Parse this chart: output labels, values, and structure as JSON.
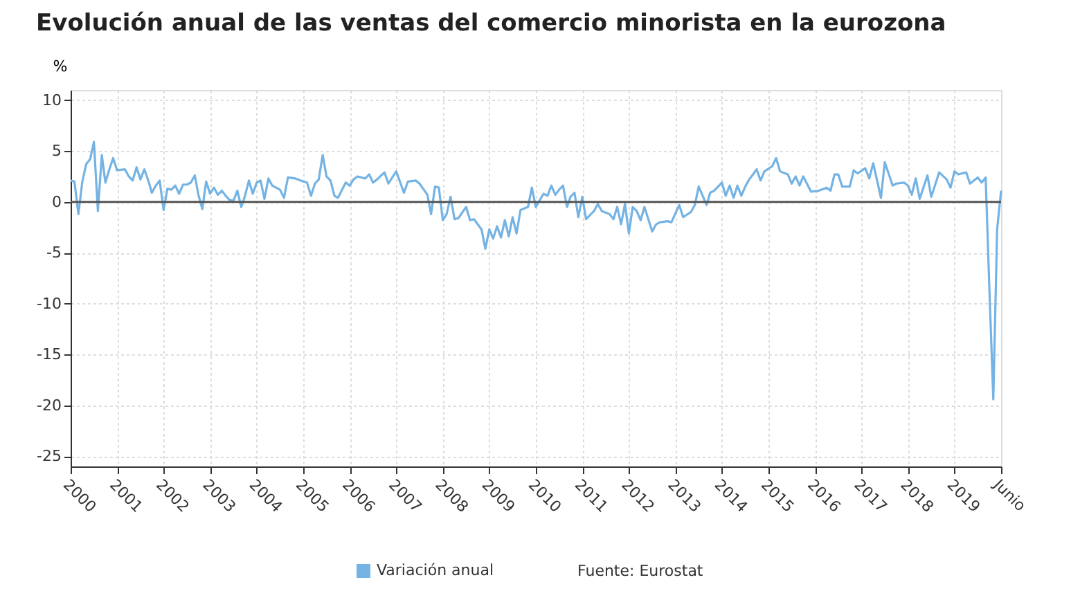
{
  "chart_data": {
    "type": "line",
    "title": "Evolución anual de las ventas del comercio minorista en la eurozona",
    "ylabel": "%",
    "x": [
      "2000-06",
      "2000-07",
      "2000-08",
      "2000-09",
      "2000-10",
      "2000-11",
      "2000-12",
      "2001-01",
      "2001-02",
      "2001-03",
      "2001-04",
      "2001-05",
      "2001-06",
      "2001-08",
      "2001-09",
      "2001-10",
      "2001-11",
      "2001-12",
      "2002-01",
      "2002-02",
      "2002-03",
      "2002-04",
      "2002-05",
      "2002-06",
      "2002-07",
      "2002-08",
      "2002-09",
      "2002-10",
      "2002-11",
      "2002-12",
      "2003-01",
      "2003-02",
      "2003-03",
      "2003-04",
      "2003-05",
      "2003-06",
      "2003-07",
      "2003-08",
      "2003-09",
      "2003-10",
      "2003-11",
      "2003-12",
      "2004-01",
      "2004-02",
      "2004-03",
      "2004-04",
      "2004-05",
      "2004-06",
      "2004-07",
      "2004-08",
      "2004-09",
      "2004-10",
      "2004-12",
      "2005-01",
      "2005-02",
      "2005-04",
      "2005-06",
      "2005-07",
      "2005-08",
      "2005-09",
      "2005-10",
      "2005-11",
      "2005-12",
      "2006-01",
      "2006-02",
      "2006-03",
      "2006-05",
      "2006-06",
      "2006-07",
      "2006-08",
      "2006-10",
      "2006-11",
      "2006-12",
      "2007-01",
      "2007-03",
      "2007-04",
      "2007-06",
      "2007-08",
      "2007-09",
      "2007-11",
      "2007-12",
      "2008-02",
      "2008-03",
      "2008-04",
      "2008-05",
      "2008-06",
      "2008-07",
      "2008-08",
      "2008-09",
      "2008-10",
      "2008-12",
      "2009-01",
      "2009-02",
      "2009-04",
      "2009-05",
      "2009-06",
      "2009-07",
      "2009-08",
      "2009-09",
      "2009-10",
      "2009-11",
      "2009-12",
      "2010-01",
      "2010-02",
      "2010-04",
      "2010-05",
      "2010-06",
      "2010-08",
      "2010-09",
      "2010-10",
      "2010-11",
      "2010-12",
      "2011-01",
      "2011-02",
      "2011-03",
      "2011-04",
      "2011-05",
      "2011-06",
      "2011-07",
      "2011-09",
      "2011-10",
      "2011-11",
      "2012-01",
      "2012-02",
      "2012-03",
      "2012-04",
      "2012-05",
      "2012-06",
      "2012-07",
      "2012-08",
      "2012-09",
      "2012-10",
      "2012-12",
      "2013-01",
      "2013-02",
      "2013-04",
      "2013-05",
      "2013-07",
      "2013-08",
      "2013-10",
      "2013-11",
      "2013-12",
      "2014-02",
      "2014-03",
      "2014-04",
      "2014-06",
      "2014-07",
      "2014-08",
      "2014-09",
      "2014-10",
      "2014-11",
      "2014-12",
      "2015-01",
      "2015-02",
      "2015-03",
      "2015-04",
      "2015-05",
      "2015-07",
      "2015-08",
      "2015-09",
      "2015-11",
      "2015-12",
      "2016-01",
      "2016-02",
      "2016-03",
      "2016-05",
      "2016-07",
      "2016-09",
      "2016-10",
      "2016-11",
      "2016-12",
      "2017-01",
      "2017-03",
      "2017-04",
      "2017-05",
      "2017-07",
      "2017-08",
      "2017-09",
      "2017-11",
      "2017-12",
      "2018-02",
      "2018-03",
      "2018-05",
      "2018-06",
      "2018-07",
      "2018-08",
      "2018-09",
      "2018-11",
      "2018-12",
      "2019-02",
      "2019-04",
      "2019-05",
      "2019-06",
      "2019-07",
      "2019-09",
      "2019-10",
      "2019-12",
      "2020-01",
      "2020-02",
      "2020-03",
      "2020-04",
      "2020-05",
      "2020-06"
    ],
    "series": [
      {
        "name": "Variación anual",
        "color": "#74b3e3",
        "values": [
          2.1,
          2.0,
          -1.2,
          2.0,
          3.7,
          4.2,
          5.9,
          -0.9,
          4.6,
          1.9,
          3.2,
          4.3,
          3.1,
          3.2,
          2.5,
          2.1,
          3.4,
          2.2,
          3.2,
          2.1,
          0.9,
          1.6,
          2.1,
          -0.8,
          1.3,
          1.2,
          1.6,
          0.8,
          1.7,
          1.7,
          1.9,
          2.6,
          0.7,
          -0.7,
          2.0,
          0.8,
          1.4,
          0.7,
          1.1,
          0.6,
          0.2,
          0.1,
          1.1,
          -0.5,
          0.6,
          2.1,
          0.8,
          1.9,
          2.1,
          0.3,
          2.3,
          1.6,
          1.2,
          0.4,
          2.4,
          2.3,
          2.0,
          1.9,
          0.6,
          1.8,
          2.2,
          4.6,
          2.5,
          2.1,
          0.6,
          0.4,
          1.9,
          1.6,
          2.2,
          2.5,
          2.3,
          2.7,
          1.9,
          2.2,
          2.9,
          1.8,
          3.0,
          0.9,
          2.0,
          2.1,
          1.8,
          0.7,
          -1.2,
          1.5,
          1.4,
          -1.8,
          -1.2,
          0.5,
          -1.7,
          -1.6,
          -0.5,
          -1.8,
          -1.7,
          -2.7,
          -4.6,
          -2.7,
          -3.6,
          -2.4,
          -3.5,
          -1.8,
          -3.4,
          -1.5,
          -3.1,
          -0.8,
          -0.5,
          1.4,
          -0.5,
          0.8,
          0.6,
          1.6,
          0.7,
          1.2,
          1.6,
          -0.5,
          0.5,
          0.9,
          -1.5,
          0.5,
          -1.7,
          -0.9,
          -0.2,
          -0.9,
          -1.2,
          -1.7,
          -0.5,
          -2.2,
          -0.2,
          -3.1,
          -0.5,
          -0.9,
          -1.8,
          -0.5,
          -2.9,
          -2.2,
          -2.0,
          -1.9,
          -2.0,
          -0.3,
          -1.5,
          -1.0,
          -0.3,
          1.5,
          -0.3,
          0.9,
          1.1,
          1.9,
          0.6,
          1.6,
          0.4,
          1.6,
          0.6,
          1.5,
          2.2,
          2.7,
          3.2,
          2.1,
          3.0,
          3.5,
          4.3,
          3.0,
          2.7,
          1.8,
          2.5,
          1.6,
          2.5,
          1.0,
          1.1,
          1.4,
          1.1,
          2.7,
          2.7,
          1.5,
          1.5,
          3.1,
          2.8,
          3.3,
          2.3,
          3.8,
          0.4,
          3.9,
          1.6,
          1.8,
          1.9,
          1.6,
          0.7,
          2.3,
          0.3,
          2.6,
          0.5,
          2.9,
          2.2,
          1.4,
          3.0,
          2.7,
          2.9,
          1.8,
          2.4,
          1.9,
          2.4,
          -8.5,
          -19.4,
          -2.7,
          1.1
        ]
      }
    ],
    "xlim": [
      "2000-06",
      "2020-06"
    ],
    "xticks": [
      {
        "value": "2000-06",
        "label": "2000"
      },
      {
        "value": "2001-06",
        "label": "2001"
      },
      {
        "value": "2002-06",
        "label": "2002"
      },
      {
        "value": "2003-06",
        "label": "2003"
      },
      {
        "value": "2004-06",
        "label": "2004"
      },
      {
        "value": "2005-06",
        "label": "2005"
      },
      {
        "value": "2006-06",
        "label": "2006"
      },
      {
        "value": "2007-06",
        "label": "2007"
      },
      {
        "value": "2008-06",
        "label": "2008"
      },
      {
        "value": "2009-06",
        "label": "2009"
      },
      {
        "value": "2010-06",
        "label": "2010"
      },
      {
        "value": "2011-06",
        "label": "2011"
      },
      {
        "value": "2012-06",
        "label": "2012"
      },
      {
        "value": "2013-06",
        "label": "2013"
      },
      {
        "value": "2014-06",
        "label": "2014"
      },
      {
        "value": "2015-06",
        "label": "2015"
      },
      {
        "value": "2016-06",
        "label": "2016"
      },
      {
        "value": "2017-06",
        "label": "2017"
      },
      {
        "value": "2018-06",
        "label": "2018"
      },
      {
        "value": "2019-06",
        "label": "2019"
      },
      {
        "value": "2020-06",
        "label": "Junio"
      }
    ],
    "ylim": [
      -26,
      11
    ],
    "yticks": [
      -25,
      -20,
      -15,
      -10,
      -5,
      0,
      5,
      10
    ],
    "ref_lines": [
      {
        "axis": "y",
        "value": 0,
        "color": "#555555"
      }
    ],
    "grid": true,
    "legend": "bottom",
    "marker": "none",
    "line_style": "solid",
    "annotations": [
      "Fuente: Eurostat"
    ]
  }
}
